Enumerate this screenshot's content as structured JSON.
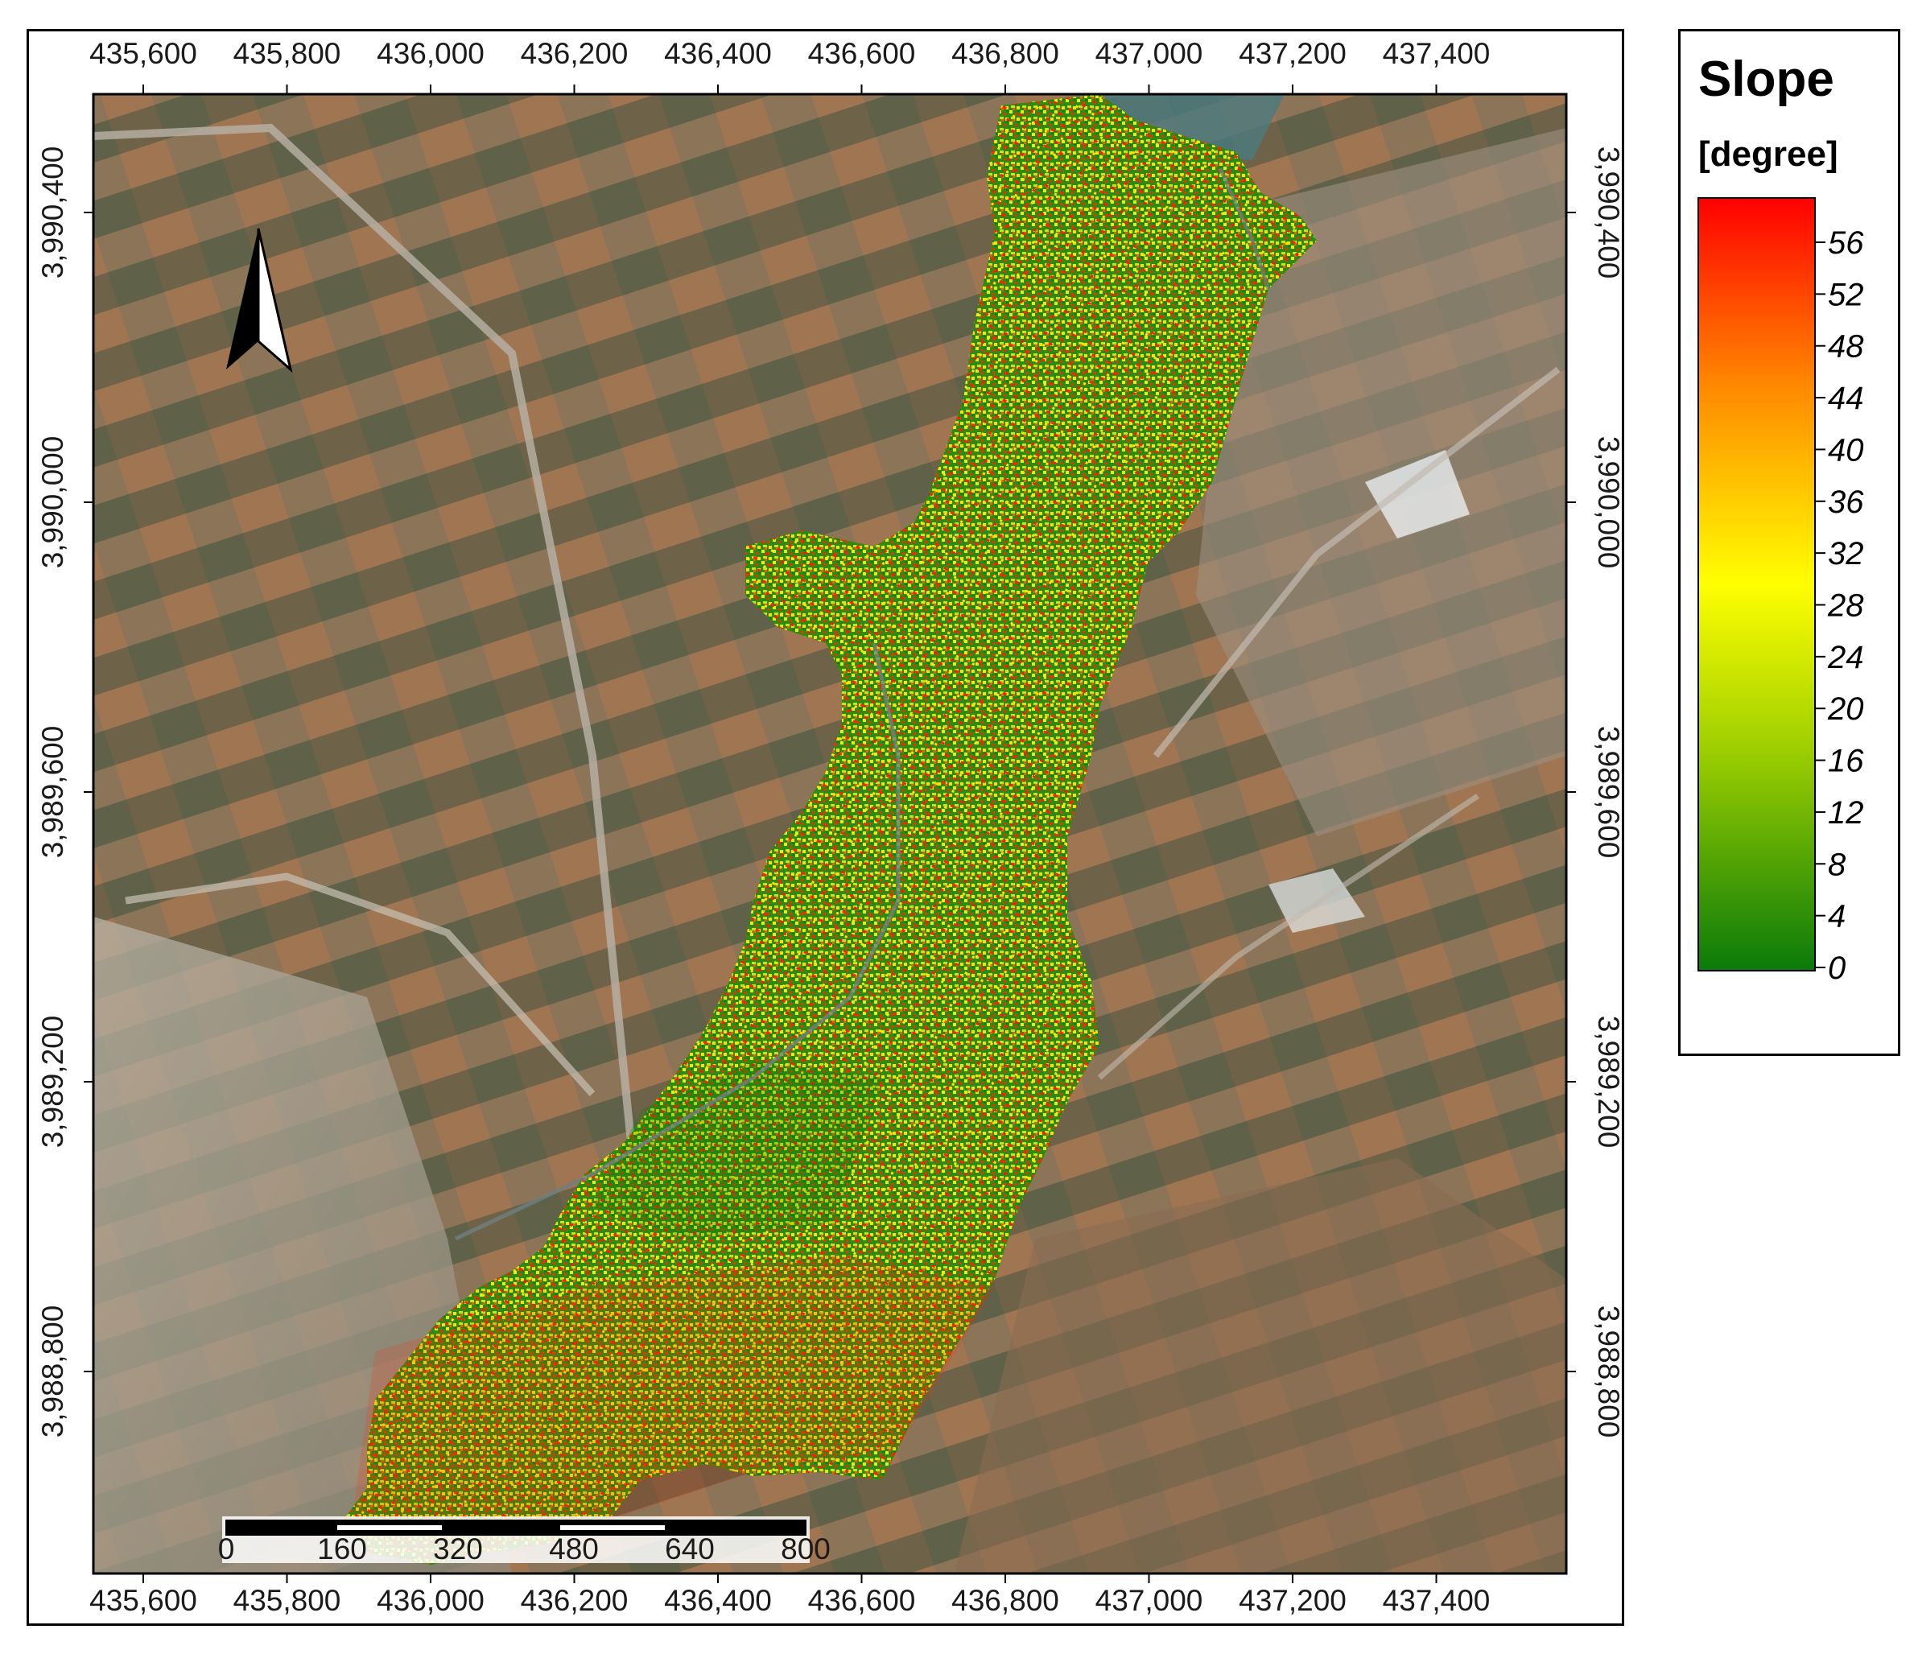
{
  "map": {
    "x_ticks": [
      "435,600",
      "435,800",
      "436,000",
      "436,200",
      "436,400",
      "436,600",
      "436,800",
      "437,000",
      "437,200",
      "437,400"
    ],
    "y_ticks": [
      "3,990,400",
      "3,990,000",
      "3,989,600",
      "3,989,200",
      "3,988,800"
    ],
    "scale_bar": {
      "labels": [
        "0",
        "160",
        "320",
        "480",
        "640",
        "800"
      ]
    },
    "north_arrow_icon": "north-arrow-icon",
    "basemap": "satellite-imagery"
  },
  "legend": {
    "title": "Slope",
    "unit": "[degree]",
    "ticks": [
      "56",
      "52",
      "48",
      "44",
      "40",
      "36",
      "32",
      "28",
      "24",
      "20",
      "16",
      "12",
      "8",
      "4",
      "0"
    ],
    "colors": {
      "high": "#ff0000",
      "mid_high": "#ff8c00",
      "mid": "#ffff00",
      "mid_low": "#9acd00",
      "low": "#0a7a0a"
    }
  }
}
